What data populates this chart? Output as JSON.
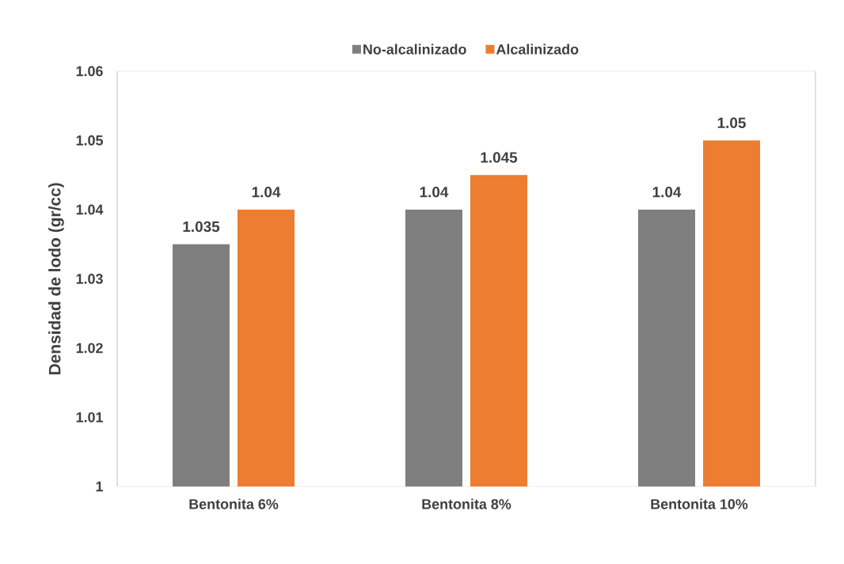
{
  "chart_data": {
    "type": "bar",
    "ylabel": "Densidad de lodo (gr/cc)",
    "categories": [
      "Bentonita 6%",
      "Bentonita 8%",
      "Bentonita 10%"
    ],
    "series": [
      {
        "name": "No-alcalinizado",
        "color": "#7f7f7f",
        "values": [
          1.035,
          1.04,
          1.04
        ],
        "value_labels": [
          "1.035",
          "1.04",
          "1.04"
        ]
      },
      {
        "name": "Alcalinizado",
        "color": "#ed7d31",
        "values": [
          1.04,
          1.045,
          1.05
        ],
        "value_labels": [
          "1.04",
          "1.045",
          "1.05"
        ]
      }
    ],
    "ylim": [
      1,
      1.06
    ],
    "yticks": [
      1,
      1.01,
      1.02,
      1.03,
      1.04,
      1.05,
      1.06
    ],
    "grid": false,
    "legend": "top"
  }
}
